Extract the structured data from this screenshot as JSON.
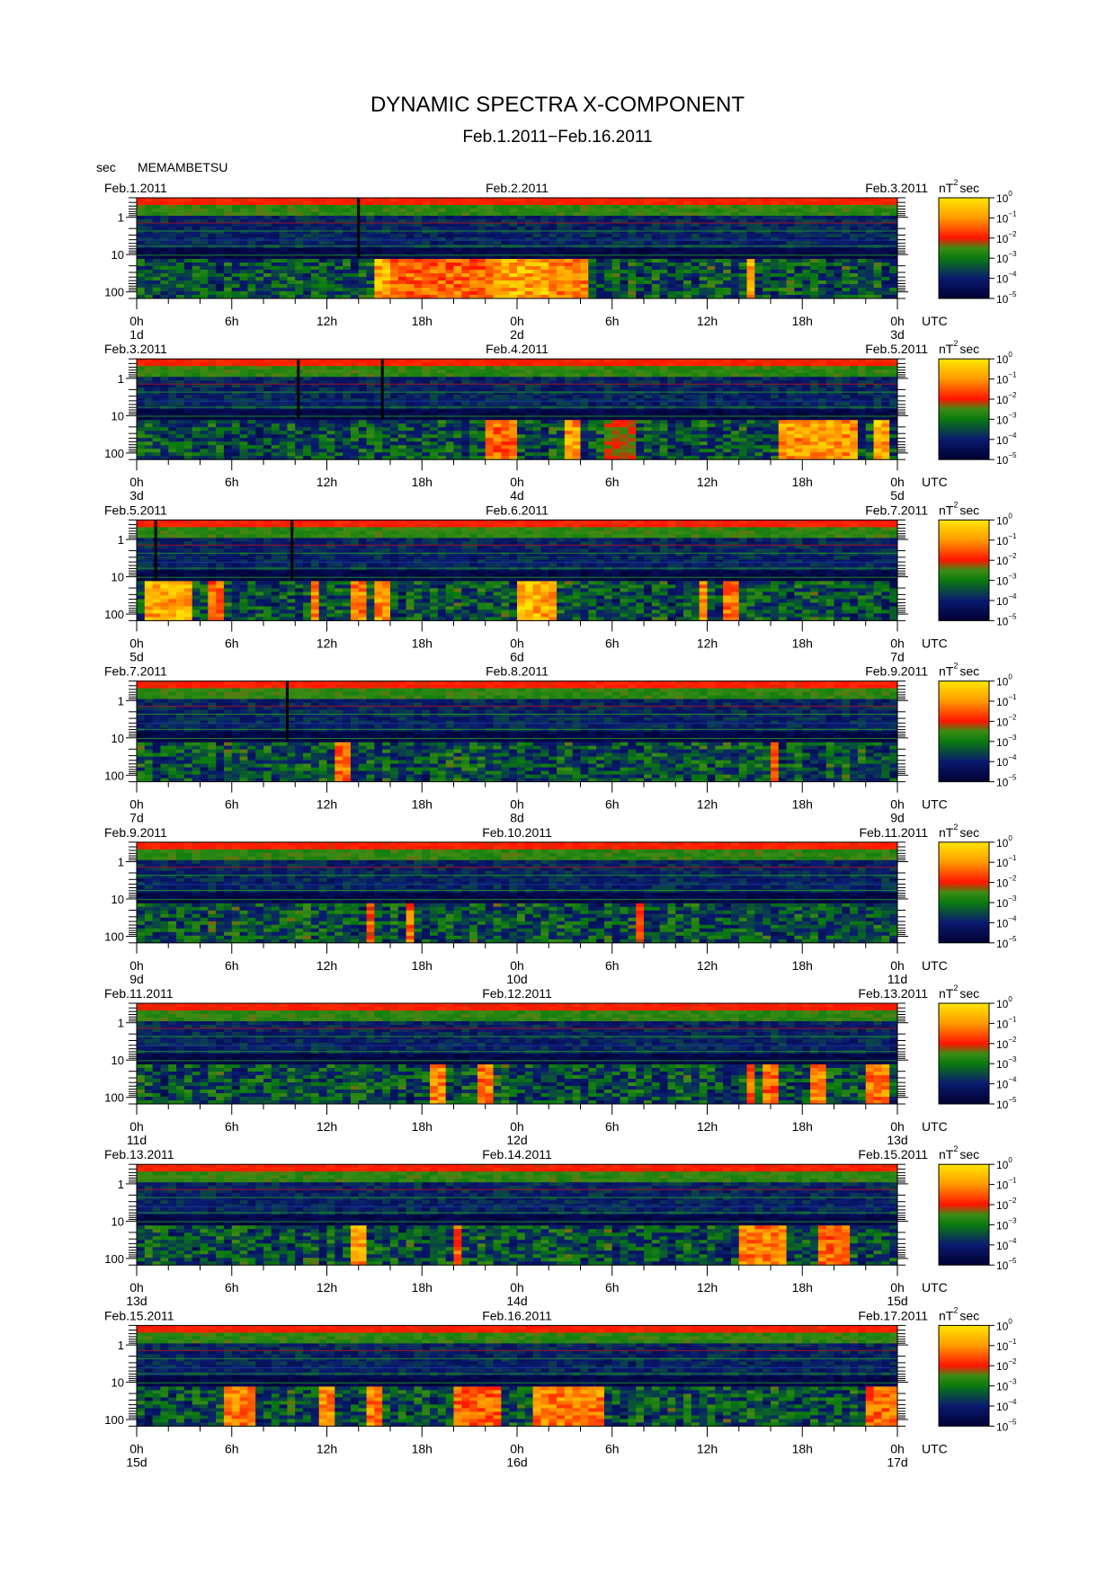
{
  "title": "DYNAMIC SPECTRA X-COMPONENT",
  "date_range": "Feb.1.2011−Feb.16.2011",
  "y_unit": "sec",
  "station": "MEMAMBETSU",
  "colorbar_unit": "nT",
  "colorbar_unit_sup": "2",
  "colorbar_unit_suffix": "sec",
  "utc_label": "UTC",
  "colors": {
    "scale": [
      "#000030",
      "#0a1a70",
      "#0a7a10",
      "#3c8c14",
      "#ff1400",
      "#ff9a00",
      "#ffe600"
    ]
  },
  "chart_data": {
    "type": "heatmap",
    "x_unit": "hour of day (UTC), 2 days per panel",
    "y_unit": "period (sec), log scale, increasing downward",
    "ylim": [
      0.3,
      150
    ],
    "y_ticks": [
      {
        "value": 1,
        "label": "1"
      },
      {
        "value": 10,
        "label": "10"
      },
      {
        "value": 100,
        "label": "100"
      }
    ],
    "x_ticks": [
      {
        "hour": 0,
        "label": "0h"
      },
      {
        "hour": 6,
        "label": "6h"
      },
      {
        "hour": 12,
        "label": "12h"
      },
      {
        "hour": 18,
        "label": "18h"
      },
      {
        "hour": 24,
        "label": "0h"
      },
      {
        "hour": 30,
        "label": "6h"
      },
      {
        "hour": 36,
        "label": "12h"
      },
      {
        "hour": 42,
        "label": "18h"
      },
      {
        "hour": 48,
        "label": "0h"
      }
    ],
    "color_scale": {
      "unit": "nT^2 sec",
      "ticks": [
        "−10",
        "−10",
        "−10",
        "−10",
        "−10",
        "−10"
      ],
      "exponents": [
        "0",
        "−1",
        "−2",
        "−3",
        "−4",
        "−5"
      ],
      "log_range": [
        -5,
        0
      ]
    },
    "panels": [
      {
        "dates": [
          "Feb.1.2011",
          "Feb.2.2011",
          "Feb.3.2011"
        ],
        "days": [
          "1d",
          "2d",
          "3d"
        ],
        "gaps": [
          14
        ],
        "events": [
          {
            "t0": 14.8,
            "t1": 16.0,
            "lp_level": 0.95
          },
          {
            "t0": 16.0,
            "t1": 22.5,
            "lp_level": 0.8
          },
          {
            "t0": 22.5,
            "t1": 26.0,
            "lp_level": 0.95
          },
          {
            "t0": 26.0,
            "t1": 28.5,
            "lp_level": 0.85
          },
          {
            "t0": 38.5,
            "t1": 39.0,
            "lp_level": 0.9
          }
        ]
      },
      {
        "dates": [
          "Feb.3.2011",
          "Feb.4.2011",
          "Feb.5.2011"
        ],
        "days": [
          "3d",
          "4d",
          "5d"
        ],
        "gaps": [
          10.2,
          15.5
        ],
        "events": [
          {
            "t0": 22.0,
            "t1": 24.0,
            "lp_level": 0.8
          },
          {
            "t0": 26.8,
            "t1": 27.8,
            "lp_level": 0.9
          },
          {
            "t0": 29.5,
            "t1": 31.5,
            "lp_level": 0.6
          },
          {
            "t0": 40.5,
            "t1": 45.5,
            "lp_level": 0.9
          },
          {
            "t0": 46.5,
            "t1": 47.5,
            "lp_level": 0.95
          }
        ]
      },
      {
        "dates": [
          "Feb.5.2011",
          "Feb.6.2011",
          "Feb.7.2011"
        ],
        "days": [
          "5d",
          "6d",
          "7d"
        ],
        "gaps": [
          1.2,
          9.8
        ],
        "events": [
          {
            "t0": 0.3,
            "t1": 3.5,
            "lp_level": 0.95
          },
          {
            "t0": 4.5,
            "t1": 5.5,
            "lp_level": 0.8
          },
          {
            "t0": 11.0,
            "t1": 11.6,
            "lp_level": 0.85
          },
          {
            "t0": 13.5,
            "t1": 14.5,
            "lp_level": 0.85
          },
          {
            "t0": 15.0,
            "t1": 15.8,
            "lp_level": 0.9
          },
          {
            "t0": 24.0,
            "t1": 26.5,
            "lp_level": 0.95
          },
          {
            "t0": 35.5,
            "t1": 36.2,
            "lp_level": 0.85
          },
          {
            "t0": 37.0,
            "t1": 37.8,
            "lp_level": 0.85
          }
        ]
      },
      {
        "dates": [
          "Feb.7.2011",
          "Feb.8.2011",
          "Feb.9.2011"
        ],
        "days": [
          "7d",
          "8d",
          "9d"
        ],
        "gaps": [
          9.5
        ],
        "events": [
          {
            "t0": 12.4,
            "t1": 13.4,
            "lp_level": 0.8
          },
          {
            "t0": 39.8,
            "t1": 40.6,
            "lp_level": 0.75
          }
        ]
      },
      {
        "dates": [
          "Feb.9.2011",
          "Feb.10.2011",
          "Feb.11.2011"
        ],
        "days": [
          "9d",
          "10d",
          "11d"
        ],
        "gaps": [],
        "events": [
          {
            "t0": 14.6,
            "t1": 15.0,
            "lp_level": 0.75
          },
          {
            "t0": 17.2,
            "t1": 17.7,
            "lp_level": 0.8
          },
          {
            "t0": 31.5,
            "t1": 32.0,
            "lp_level": 0.7
          }
        ]
      },
      {
        "dates": [
          "Feb.11.2011",
          "Feb.12.2011",
          "Feb.13.2011"
        ],
        "days": [
          "11d",
          "12d",
          "13d"
        ],
        "gaps": [],
        "events": [
          {
            "t0": 18.5,
            "t1": 19.3,
            "lp_level": 0.85
          },
          {
            "t0": 21.5,
            "t1": 22.5,
            "lp_level": 0.85
          },
          {
            "t0": 38.5,
            "t1": 39.0,
            "lp_level": 0.8
          },
          {
            "t0": 39.7,
            "t1": 40.3,
            "lp_level": 0.8
          },
          {
            "t0": 42.5,
            "t1": 43.5,
            "lp_level": 0.85
          },
          {
            "t0": 46.0,
            "t1": 47.5,
            "lp_level": 0.85
          }
        ]
      },
      {
        "dates": [
          "Feb.13.2011",
          "Feb.14.2011",
          "Feb.15.2011"
        ],
        "days": [
          "13d",
          "14d",
          "15d"
        ],
        "gaps": [],
        "events": [
          {
            "t0": 13.4,
            "t1": 14.3,
            "lp_level": 0.9
          },
          {
            "t0": 20.0,
            "t1": 20.6,
            "lp_level": 0.75
          },
          {
            "t0": 38.0,
            "t1": 41.0,
            "lp_level": 0.85
          },
          {
            "t0": 43.0,
            "t1": 45.0,
            "lp_level": 0.8
          }
        ]
      },
      {
        "dates": [
          "Feb.15.2011",
          "Feb.16.2011",
          "Feb.17.2011"
        ],
        "days": [
          "15d",
          "16d",
          "17d"
        ],
        "gaps": [],
        "events": [
          {
            "t0": 5.5,
            "t1": 7.5,
            "lp_level": 0.85
          },
          {
            "t0": 11.5,
            "t1": 12.5,
            "lp_level": 0.85
          },
          {
            "t0": 14.5,
            "t1": 15.5,
            "lp_level": 0.85
          },
          {
            "t0": 20.0,
            "t1": 23.0,
            "lp_level": 0.8
          },
          {
            "t0": 25.0,
            "t1": 29.5,
            "lp_level": 0.85
          },
          {
            "t0": 46.0,
            "t1": 47.8,
            "lp_level": 0.8
          }
        ]
      }
    ]
  }
}
